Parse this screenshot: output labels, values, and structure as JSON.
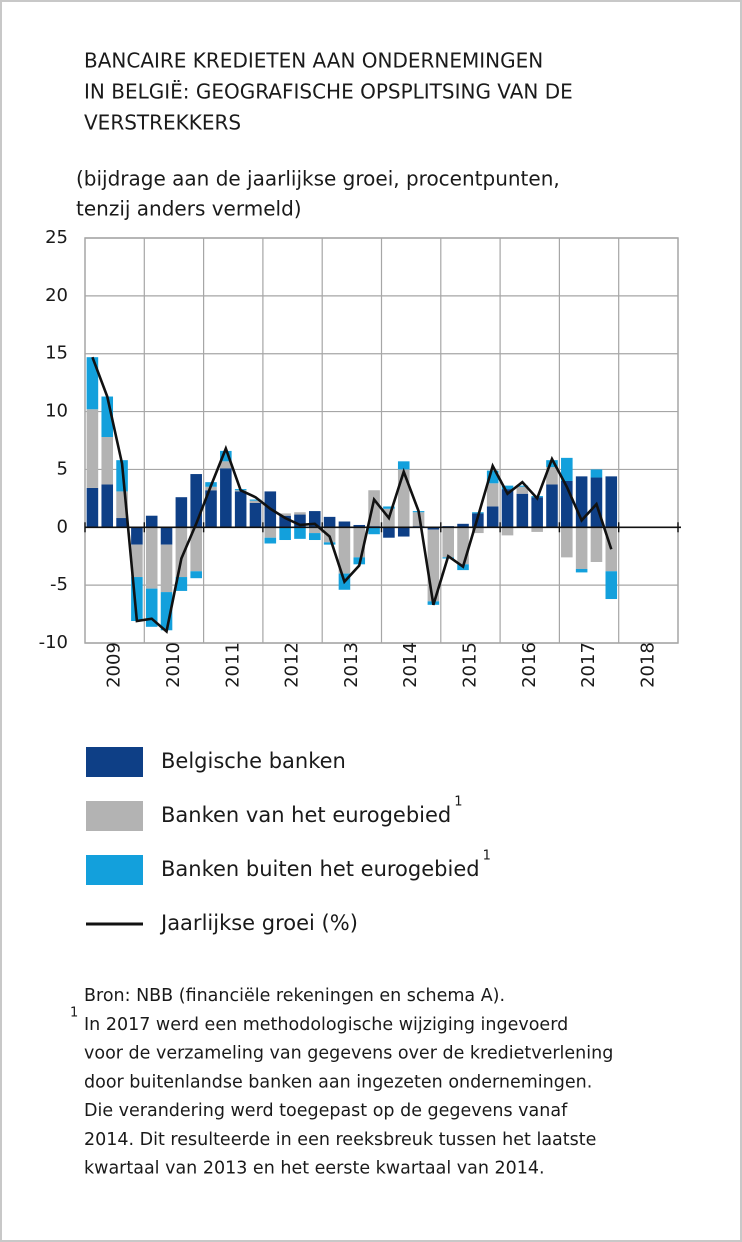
{
  "chart_data": {
    "type": "stacked-bar-line",
    "title_lines": [
      "BANCAIRE KREDIETEN AAN ONDERNEMINGEN",
      "IN BELGIË: GEOGRAFISCHE OPSPLITSING VAN DE",
      "VERSTREKKERS"
    ],
    "subtitle_lines": [
      "(bijdrage aan de jaarlijkse groei, procentpunten,",
      "tenzij anders vermeld)"
    ],
    "x": [
      2009.125,
      2009.375,
      2009.625,
      2009.875,
      2010.125,
      2010.375,
      2010.625,
      2010.875,
      2011.125,
      2011.375,
      2011.625,
      2011.875,
      2012.125,
      2012.375,
      2012.625,
      2012.875,
      2013.125,
      2013.375,
      2013.625,
      2013.875,
      2014.125,
      2014.375,
      2014.625,
      2014.875,
      2015.125,
      2015.375,
      2015.625,
      2015.875,
      2016.125,
      2016.375,
      2016.625,
      2016.875,
      2017.125,
      2017.375,
      2017.625,
      2017.875
    ],
    "series": [
      {
        "name": "Belgische banken",
        "color": "#0e3f86",
        "kind": "bar",
        "values": [
          3.4,
          3.7,
          0.8,
          -1.5,
          1.0,
          -1.5,
          2.6,
          4.6,
          3.2,
          5.1,
          3.1,
          2.1,
          3.1,
          1.0,
          1.1,
          1.4,
          0.9,
          0.5,
          0.2,
          0.1,
          -0.9,
          -0.8,
          0.1,
          -0.2,
          0.1,
          0.3,
          1.2,
          1.8,
          3.3,
          2.9,
          2.6,
          3.7,
          4.0,
          4.4,
          4.3,
          4.4
        ]
      },
      {
        "name": "Banken van het eurogebied",
        "note": "1",
        "color": "#b3b3b3",
        "kind": "bar",
        "values": [
          6.8,
          4.1,
          2.3,
          -2.8,
          -5.3,
          -4.1,
          -4.3,
          -3.8,
          0.3,
          0.6,
          0.1,
          0.2,
          -0.9,
          0.2,
          0.2,
          -0.5,
          -1.3,
          -4.0,
          -2.6,
          3.1,
          1.6,
          5.0,
          1.2,
          -6.2,
          -2.6,
          -3.2,
          -0.5,
          2.0,
          -0.7,
          0.6,
          -0.4,
          1.5,
          -2.6,
          -3.6,
          -3.0,
          -3.8
        ]
      },
      {
        "name": "Banken buiten het eurogebied",
        "note": "1",
        "color": "#13a0dc",
        "kind": "bar",
        "values": [
          4.5,
          3.5,
          2.7,
          -3.8,
          -3.3,
          -3.3,
          -1.2,
          -0.6,
          0.4,
          0.9,
          0.1,
          0.1,
          -0.5,
          -1.1,
          -1.0,
          -0.6,
          -0.2,
          -1.4,
          -0.6,
          -0.6,
          0.2,
          0.7,
          0.1,
          -0.3,
          -0.1,
          -0.5,
          0.1,
          1.1,
          0.3,
          0.1,
          0.1,
          0.6,
          2.0,
          -0.3,
          0.7,
          -2.4
        ]
      },
      {
        "name": "Jaarlijkse groei (%)",
        "color": "#111111",
        "kind": "line",
        "values": [
          14.7,
          11.3,
          5.5,
          -8.1,
          -7.9,
          -9.0,
          -2.7,
          0.3,
          3.6,
          6.8,
          3.2,
          2.6,
          1.6,
          0.8,
          0.2,
          0.3,
          -0.8,
          -4.7,
          -3.3,
          2.4,
          0.8,
          4.8,
          1.4,
          -6.7,
          -2.5,
          -3.4,
          0.9,
          5.3,
          2.9,
          3.9,
          2.5,
          5.9,
          3.5,
          0.6,
          2.0,
          -1.9
        ]
      }
    ],
    "xlim": [
      2009,
      2019
    ],
    "xticks": [
      {
        "value": 2009.5,
        "label": "2009"
      },
      {
        "value": 2010.5,
        "label": "2010"
      },
      {
        "value": 2011.5,
        "label": "2011"
      },
      {
        "value": 2012.5,
        "label": "2012"
      },
      {
        "value": 2013.5,
        "label": "2013"
      },
      {
        "value": 2014.5,
        "label": "2014"
      },
      {
        "value": 2015.5,
        "label": "2015"
      },
      {
        "value": 2016.5,
        "label": "2016"
      },
      {
        "value": 2017.5,
        "label": "2017"
      },
      {
        "value": 2018.5,
        "label": "2018"
      }
    ],
    "ylim": [
      -10,
      25
    ],
    "yticks": [
      -10,
      -5,
      0,
      5,
      10,
      15,
      20,
      25
    ],
    "grid": true,
    "source": "Bron: NBB (financiële rekeningen en schema A).",
    "note_mark": "1",
    "note_lines": [
      "In 2017 werd een methodologische wijziging ingevoerd",
      "voor de verzameling van gegevens over de kredietverlening",
      "door buitenlandse banken aan ingezeten ondernemingen.",
      "Die verandering werd toegepast op de gegevens vanaf",
      "2014. Dit resulteerde in een reeksbreuk tussen het laatste",
      "kwartaal van 2013 en het eerste kwartaal van 2014."
    ]
  }
}
